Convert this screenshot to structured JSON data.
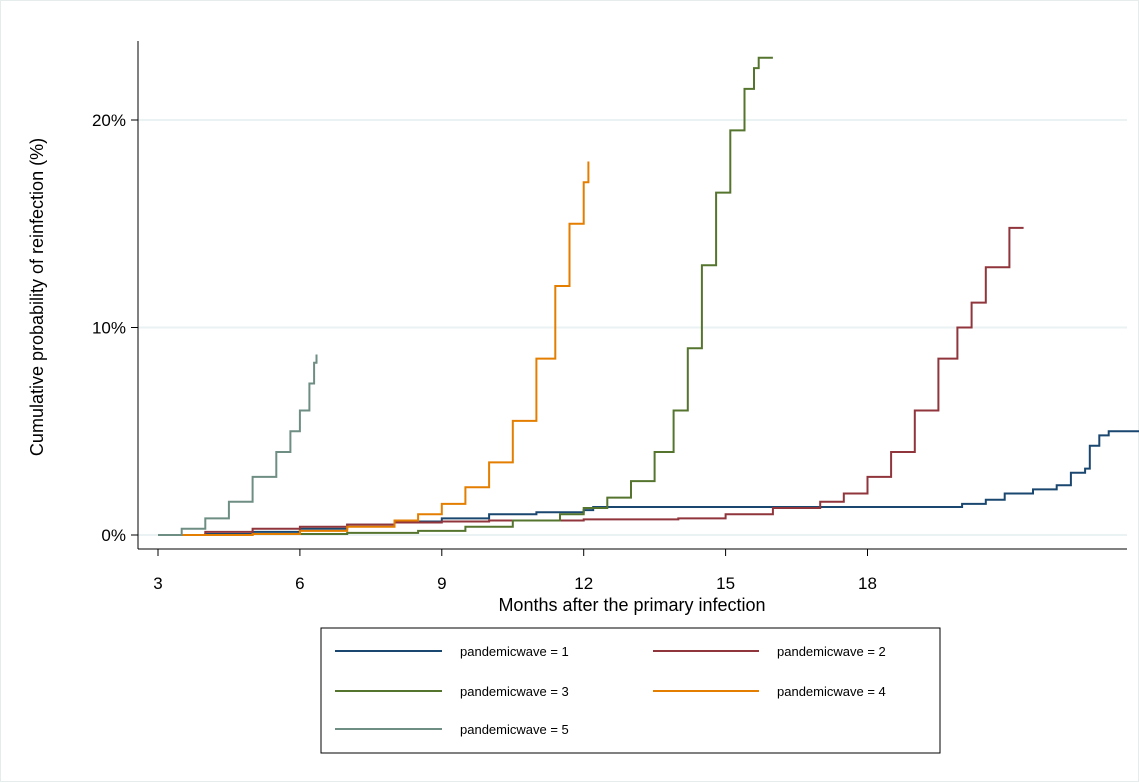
{
  "chart_data": {
    "type": "line",
    "title": "",
    "xlabel": "Months after the primary infection",
    "ylabel": "Cumulative probability of reinfection  (%)",
    "xlim": [
      3,
      23.8
    ],
    "ylim": [
      0,
      23
    ],
    "xticks": [
      3,
      6,
      9,
      12,
      15,
      18
    ],
    "yticks": [
      0,
      10,
      20
    ],
    "ytick_labels": [
      "0%",
      "10%",
      "20%"
    ],
    "grid": "horizontal",
    "legend_position": "bottom",
    "step": true,
    "series": [
      {
        "name": "pandemicwave = 1",
        "color": "#1a476f",
        "points": [
          [
            3,
            0
          ],
          [
            4,
            0.05
          ],
          [
            5,
            0.15
          ],
          [
            6,
            0.3
          ],
          [
            7,
            0.5
          ],
          [
            8,
            0.65
          ],
          [
            9,
            0.8
          ],
          [
            10,
            1.0
          ],
          [
            11,
            1.1
          ],
          [
            12,
            1.2
          ],
          [
            12.2,
            1.35
          ],
          [
            14,
            1.35
          ],
          [
            16,
            1.35
          ],
          [
            18,
            1.35
          ],
          [
            19.8,
            1.35
          ],
          [
            20,
            1.5
          ],
          [
            20.5,
            1.7
          ],
          [
            20.9,
            2.0
          ],
          [
            21.5,
            2.2
          ],
          [
            22,
            2.4
          ],
          [
            22.3,
            3.0
          ],
          [
            22.6,
            3.2
          ],
          [
            22.7,
            4.3
          ],
          [
            22.9,
            4.8
          ],
          [
            23.1,
            5.0
          ],
          [
            23.8,
            5.0
          ]
        ]
      },
      {
        "name": "pandemicwave = 2",
        "color": "#90353b",
        "points": [
          [
            3,
            0
          ],
          [
            4,
            0.15
          ],
          [
            5,
            0.3
          ],
          [
            6,
            0.4
          ],
          [
            7,
            0.5
          ],
          [
            8,
            0.6
          ],
          [
            9,
            0.65
          ],
          [
            10,
            0.7
          ],
          [
            12,
            0.75
          ],
          [
            14,
            0.8
          ],
          [
            15,
            1.0
          ],
          [
            16,
            1.3
          ],
          [
            17,
            1.6
          ],
          [
            17.5,
            2.0
          ],
          [
            18,
            2.8
          ],
          [
            18.5,
            4.0
          ],
          [
            19,
            6.0
          ],
          [
            19.5,
            8.5
          ],
          [
            19.9,
            10.0
          ],
          [
            20.2,
            11.2
          ],
          [
            20.5,
            12.9
          ],
          [
            20.9,
            12.9
          ],
          [
            21,
            14.8
          ],
          [
            21.3,
            14.8
          ]
        ]
      },
      {
        "name": "pandemicwave = 3",
        "color": "#55752f",
        "points": [
          [
            3,
            0
          ],
          [
            5,
            0.05
          ],
          [
            7,
            0.1
          ],
          [
            8.5,
            0.2
          ],
          [
            9.5,
            0.4
          ],
          [
            10.5,
            0.7
          ],
          [
            11.5,
            1.0
          ],
          [
            12,
            1.3
          ],
          [
            12.5,
            1.8
          ],
          [
            13,
            2.6
          ],
          [
            13.5,
            4.0
          ],
          [
            13.9,
            6.0
          ],
          [
            14.2,
            9.0
          ],
          [
            14.5,
            13.0
          ],
          [
            14.8,
            16.5
          ],
          [
            15.1,
            19.5
          ],
          [
            15.4,
            21.5
          ],
          [
            15.6,
            22.5
          ],
          [
            15.7,
            23
          ],
          [
            16,
            23
          ]
        ]
      },
      {
        "name": "pandemicwave = 4",
        "color": "#e37e00",
        "points": [
          [
            3,
            0
          ],
          [
            5,
            0.05
          ],
          [
            6,
            0.2
          ],
          [
            7,
            0.4
          ],
          [
            8,
            0.7
          ],
          [
            8.5,
            1.0
          ],
          [
            9,
            1.5
          ],
          [
            9.5,
            2.3
          ],
          [
            10,
            3.5
          ],
          [
            10.5,
            5.5
          ],
          [
            11,
            8.5
          ],
          [
            11.4,
            12.0
          ],
          [
            11.7,
            15.0
          ],
          [
            12,
            17.0
          ],
          [
            12.1,
            18.0
          ]
        ]
      },
      {
        "name": "pandemicwave = 5",
        "color": "#6e8e84",
        "points": [
          [
            3,
            0
          ],
          [
            3.5,
            0.3
          ],
          [
            4,
            0.8
          ],
          [
            4.5,
            1.6
          ],
          [
            5,
            2.8
          ],
          [
            5.5,
            4.0
          ],
          [
            5.8,
            5.0
          ],
          [
            6,
            6.0
          ],
          [
            6.2,
            7.3
          ],
          [
            6.3,
            8.3
          ],
          [
            6.35,
            8.7
          ]
        ]
      }
    ]
  }
}
